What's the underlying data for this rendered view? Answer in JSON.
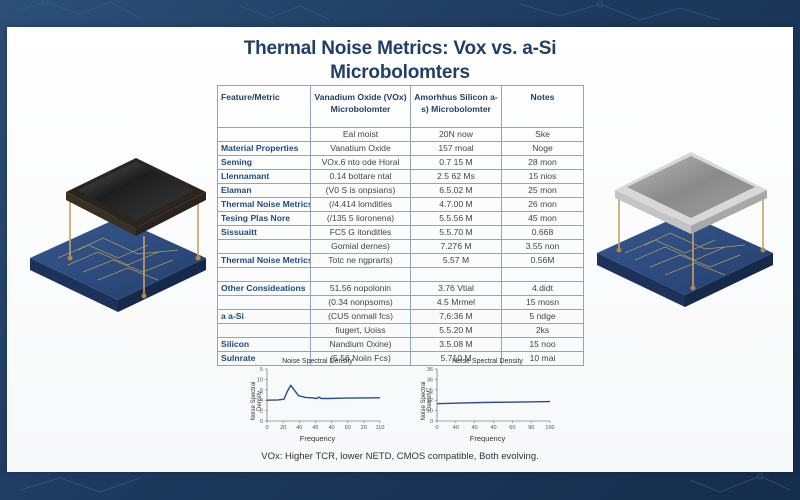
{
  "title": "Thermal Noise Metrics: Vox vs. a-Si Microbolomters",
  "table": {
    "headers": [
      "Feature/Metric",
      "Vanadium Oxide (VOx) Microbolomter",
      "Amorhhus Silicon a-s) Microbolomter",
      "Notes"
    ],
    "rows": [
      [
        "",
        "Eal moist",
        "20N now",
        "Ske"
      ],
      [
        "Material Properties",
        "Vanatium Oxide",
        "157 moal",
        "Noge"
      ],
      [
        "Seming",
        "VOx.6 nto ode Horal",
        "0.7 15 M",
        "28 mon"
      ],
      [
        "Llennamant",
        "0.14 bottare ntal",
        "2.5 62 Ms",
        "15 nios"
      ],
      [
        "Elaman",
        "(V0 S is onpsians)",
        "6.5.02 M",
        "25 mon"
      ],
      [
        "Thermal Noise Metrics",
        "(/4.414 lomditles",
        "4.7.00 M",
        "26 mon"
      ],
      [
        "Tesing Plas Nore",
        "(/135 5 lioronena)",
        "5.5.56 M",
        "45 mon"
      ],
      [
        "Sissuaitt",
        "FC5 G itonditles",
        "5.5.70 M",
        "0.668"
      ],
      [
        "",
        "Gomial dernes)",
        "7.276 M",
        "3.55 non"
      ],
      [
        "Thermal Noise Metrics",
        "Totc ne ngprarts)",
        "5.57 M",
        "0.56M"
      ],
      [
        "",
        "",
        "",
        ""
      ],
      [
        "Other Consideations",
        "51.56 nopolonin",
        "3.76 Vtial",
        "4.didt"
      ],
      [
        "",
        "(0.34 nonpsoms)",
        "4.5 Mrmel",
        "15 mosn"
      ],
      [
        "a a-Si",
        "(CUS onmall fcs)",
        "7,6:36 M",
        "5 ndge"
      ],
      [
        "",
        "fiugert, Uoiss",
        "5.5.20 M",
        "2ks"
      ],
      [
        "Silicon",
        "Nandium Oxine)",
        "3.5.08 M",
        "15 noo"
      ],
      [
        "Sulnrate",
        "(5.56 Noiin Fcs)",
        "5.710 M",
        "10 mai"
      ]
    ]
  },
  "chart_data": [
    {
      "type": "line",
      "title": "Noise Spectral Density",
      "xlabel": "Frequency",
      "ylabel": "Noise Spectral Density",
      "x_ticks": [
        "0",
        "20",
        "40",
        "45",
        "40",
        "60",
        "20",
        "110"
      ],
      "y_ticks": [
        "0",
        "2",
        "4",
        "6",
        "10",
        "5"
      ],
      "x": [
        0,
        10,
        15,
        18,
        21,
        24,
        28,
        34,
        40,
        44,
        46,
        48,
        55,
        70,
        100
      ],
      "values": [
        6.0,
        6.1,
        6.3,
        8.5,
        10.3,
        9.0,
        7.3,
        6.8,
        6.7,
        6.5,
        6.9,
        6.5,
        6.5,
        6.6,
        6.7
      ],
      "ylim": [
        0,
        15
      ],
      "grid": false,
      "color": "#2a4f80"
    },
    {
      "type": "line",
      "title": "Neise Spectral Density",
      "xlabel": "Frequency",
      "ylabel": "Noise Spectral Density",
      "x_ticks": [
        "0",
        "40",
        "40",
        "40",
        "60",
        "90",
        "160"
      ],
      "y_ticks": [
        "0",
        "10",
        "12",
        "1/6",
        "36",
        "36"
      ],
      "x": [
        0,
        20,
        40,
        60,
        80,
        100
      ],
      "values": [
        12.0,
        12.4,
        12.8,
        13.0,
        13.2,
        13.4
      ],
      "ylim": [
        0,
        36
      ],
      "grid": false,
      "color": "#2a4f80"
    }
  ],
  "caption": "VOx: Higher TCR, lower NETD, CMOS compatible, Both evolving.",
  "images": {
    "left": "VOx microbolometer chip over blue circuit board (dark membrane)",
    "right": "a-Si microbolometer chip over blue circuit board (gray membrane)"
  },
  "colors": {
    "background": "#1e3a5c",
    "title": "#1f3f66",
    "table_border": "#8ea4bf",
    "label_text": "#1f4a80"
  }
}
